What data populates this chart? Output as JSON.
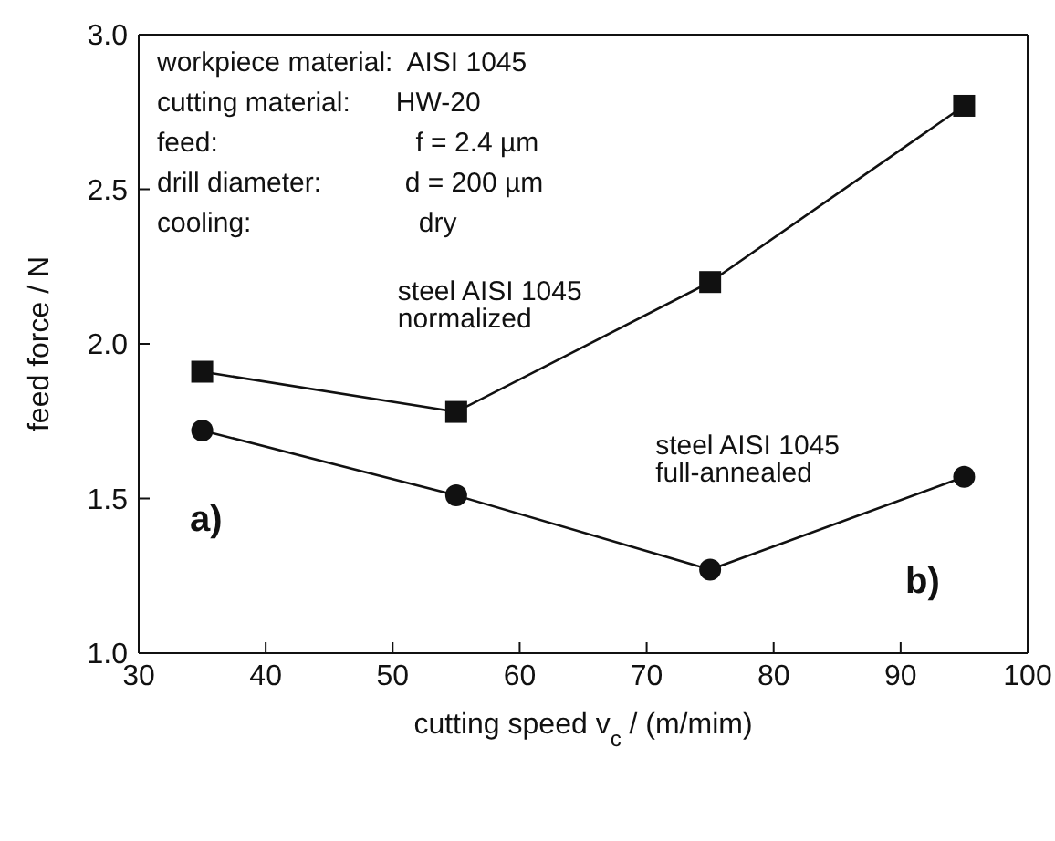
{
  "chart_data": {
    "type": "line",
    "xlabel": "cutting speed v$_{c}$ / (m/mim)",
    "ylabel": "feed force / N",
    "x": [
      35,
      55,
      75,
      95
    ],
    "series": [
      {
        "name": "steel AISI 1045 normalized",
        "color": "#111111",
        "marker": "square",
        "values": [
          1.91,
          1.78,
          2.2,
          2.77
        ]
      },
      {
        "name": "steel AISI 1045 full-annealed",
        "color": "#111111",
        "marker": "circle",
        "values": [
          1.72,
          1.51,
          1.27,
          1.57
        ]
      }
    ],
    "xlim": [
      30,
      100
    ],
    "xticks": [
      30,
      40,
      50,
      60,
      70,
      80,
      90,
      100
    ],
    "ylim": [
      1.0,
      3.0
    ],
    "yticks": [
      {
        "value": 1.0,
        "label": "1.0"
      },
      {
        "value": 1.5,
        "label": "1.5"
      },
      {
        "value": 2.0,
        "label": "2.0"
      },
      {
        "value": 2.5,
        "label": "2.5"
      },
      {
        "value": 3.0,
        "label": "3.0"
      }
    ],
    "grid": false,
    "legend": false,
    "line_style": "solid",
    "annotations": [
      "workpiece material:  AISI 1045",
      "cutting material:      HW-20",
      "feed:                          f = 2.4 µm",
      "drill diameter:           d = 200 µm",
      "cooling:                      dry",
      "a)",
      "b)"
    ]
  }
}
